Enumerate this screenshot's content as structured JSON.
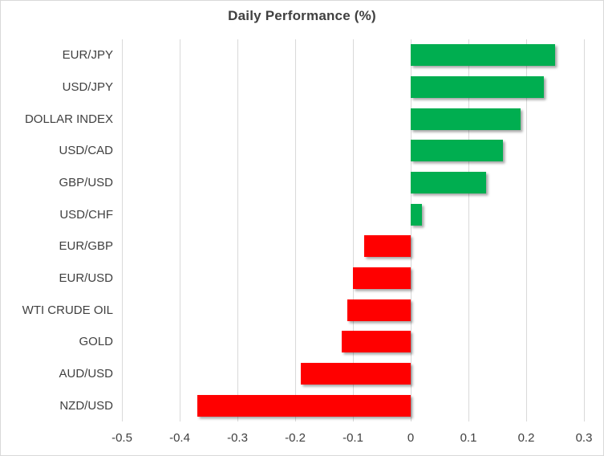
{
  "chart_data": {
    "type": "bar",
    "orientation": "horizontal",
    "title": "Daily Performance (%)",
    "categories": [
      "EUR/JPY",
      "USD/JPY",
      "DOLLAR INDEX",
      "USD/CAD",
      "GBP/USD",
      "USD/CHF",
      "EUR/GBP",
      "EUR/USD",
      "WTI CRUDE OIL",
      "GOLD",
      "AUD/USD",
      "NZD/USD"
    ],
    "values": [
      0.25,
      0.23,
      0.19,
      0.16,
      0.13,
      0.02,
      -0.08,
      -0.1,
      -0.11,
      -0.12,
      -0.19,
      -0.37
    ],
    "xlim": [
      -0.5,
      0.3
    ],
    "xticks": [
      -0.5,
      -0.4,
      -0.3,
      -0.2,
      -0.1,
      0,
      0.1,
      0.2,
      0.3
    ],
    "xtick_labels": [
      "-0.5",
      "-0.4",
      "-0.3",
      "-0.2",
      "-0.1",
      "0",
      "0.1",
      "0.2",
      "0.3"
    ],
    "grid": "vertical-on",
    "legend": "none",
    "colors": {
      "positive_bar": "#00AE50",
      "negative_bar": "#FF0000",
      "gridline": "#D9D9D9",
      "text": "#404040"
    }
  }
}
